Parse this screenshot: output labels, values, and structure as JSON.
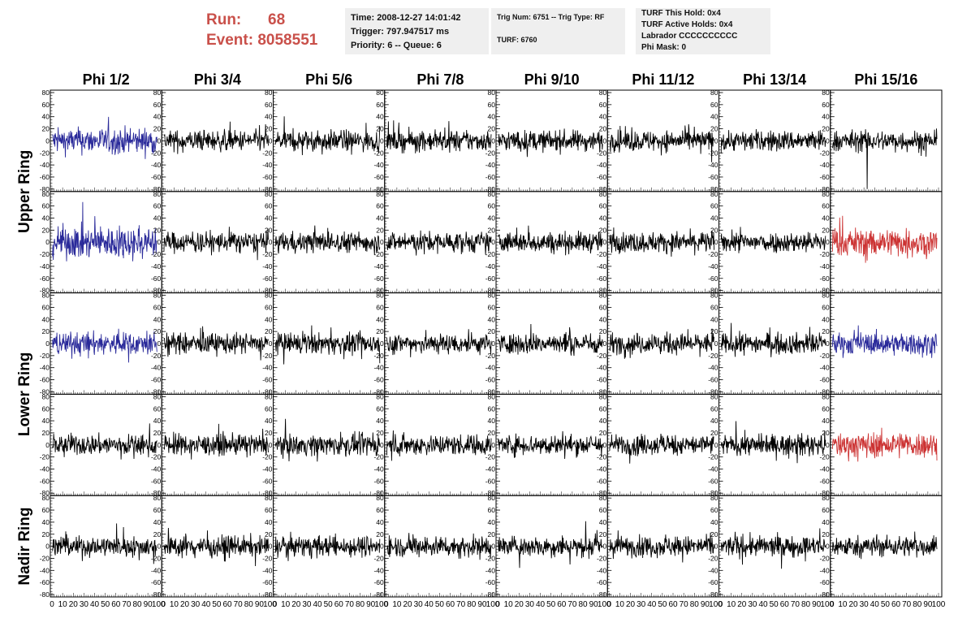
{
  "header": {
    "run_label": "Run:",
    "run_value": "68",
    "event_label": "Event:",
    "event_value": "8058551",
    "time_text": "Time: 2008-12-27 14:01:42",
    "trigger_text": "Trigger: 797.947517 ms",
    "priority_text": "Priority: 6 -- Queue: 6",
    "trig_num_text": "Trig Num: 6751 -- Trig Type: RF",
    "turf_text": "TURF: 6760",
    "turf_this_hold": "TURF This Hold: 0x4",
    "turf_active_holds": "TURF Active Holds: 0x4",
    "labrador": "Labrador CCCCCCCCCC",
    "phi_mask": "Phi Mask: 0"
  },
  "chart_data": {
    "type": "line",
    "columns": [
      "Phi 1/2",
      "Phi 3/4",
      "Phi 5/6",
      "Phi 7/8",
      "Phi 9/10",
      "Phi 11/12",
      "Phi 13/14",
      "Phi 15/16"
    ],
    "ring_labels": [
      "Upper Ring",
      "Lower Ring",
      "Nadir Ring"
    ],
    "rows_per_ring": [
      2,
      2,
      1
    ],
    "xlim": [
      0,
      100
    ],
    "ylim": [
      -80,
      80
    ],
    "yticks": [
      -80,
      -60,
      -40,
      -20,
      0,
      20,
      40,
      60,
      80
    ],
    "xticks": [
      0,
      10,
      20,
      30,
      40,
      50,
      60,
      70,
      80,
      90,
      100
    ],
    "samples_per_trace": 260,
    "colors": {
      "normal": "#000000",
      "blue": "#2a2a9a",
      "red": "#cc3333"
    },
    "highlighted": [
      {
        "row": 0,
        "col": 0,
        "color": "blue",
        "amplitude": 20
      },
      {
        "row": 1,
        "col": 0,
        "color": "blue",
        "amplitude": 25
      },
      {
        "row": 1,
        "col": 7,
        "color": "red",
        "amplitude": 22
      },
      {
        "row": 2,
        "col": 0,
        "color": "blue",
        "amplitude": 18
      },
      {
        "row": 2,
        "col": 7,
        "color": "blue",
        "amplitude": 17
      },
      {
        "row": 3,
        "col": 7,
        "color": "red",
        "amplitude": 20
      }
    ],
    "amplitude_default": 16,
    "spikes": [
      {
        "row": 0,
        "col": 7,
        "x": 33,
        "y": -80
      }
    ]
  }
}
